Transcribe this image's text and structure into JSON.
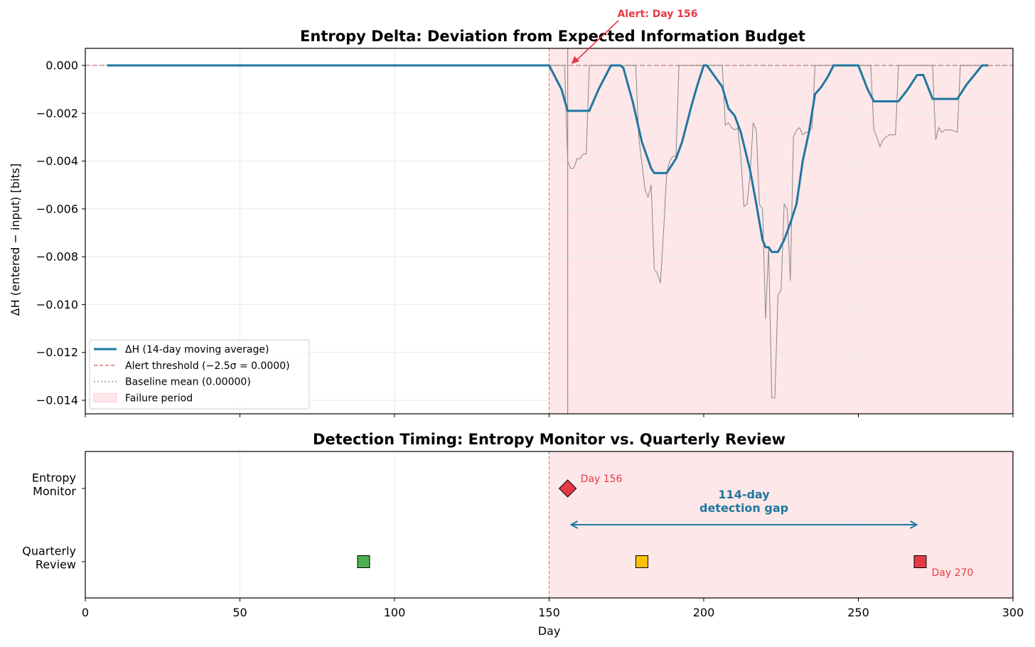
{
  "chart_data": [
    {
      "type": "line",
      "title": "Entropy Delta: Deviation from Expected Information Budget",
      "xlabel": "",
      "ylabel": "ΔH (entered − input) [bits]",
      "xlim": [
        0,
        300
      ],
      "ylim": [
        -0.0146,
        0.0007
      ],
      "x_ticks": [
        0,
        50,
        100,
        150,
        200,
        250,
        300
      ],
      "y_ticks": [
        0.0,
        -0.002,
        -0.004,
        -0.006,
        -0.008,
        -0.01,
        -0.012,
        -0.014
      ],
      "y_tick_labels": [
        "0.000",
        "−0.002",
        "−0.004",
        "−0.006",
        "−0.008",
        "−0.010",
        "−0.012",
        "−0.014"
      ],
      "grid": true,
      "legend_position": "lower-left",
      "failure_period": [
        150,
        300
      ],
      "alert_day": 156,
      "annotation": "Alert: Day 156",
      "series": [
        {
          "name": "ΔH (14-day moving average)",
          "color": "#1f77a0",
          "style": "solid",
          "points": [
            [
              7,
              0
            ],
            [
              150,
              0
            ],
            [
              154,
              -0.001
            ],
            [
              156,
              -0.0019
            ],
            [
              163,
              -0.0019
            ],
            [
              166,
              -0.001
            ],
            [
              170,
              0
            ],
            [
              173,
              0
            ],
            [
              174,
              -0.0001
            ],
            [
              177,
              -0.0015
            ],
            [
              180,
              -0.0032
            ],
            [
              183,
              -0.0043
            ],
            [
              184,
              -0.0045
            ],
            [
              188,
              -0.0045
            ],
            [
              191,
              -0.0039
            ],
            [
              193,
              -0.0032
            ],
            [
              196,
              -0.0017
            ],
            [
              198,
              -0.0008
            ],
            [
              200,
              0
            ],
            [
              201,
              0
            ],
            [
              206,
              -0.0009
            ],
            [
              208,
              -0.0018
            ],
            [
              210,
              -0.0021
            ],
            [
              212,
              -0.0028
            ],
            [
              215,
              -0.0044
            ],
            [
              217,
              -0.0058
            ],
            [
              219,
              -0.0073
            ],
            [
              220,
              -0.0076
            ],
            [
              221,
              -0.0076
            ],
            [
              222,
              -0.0078
            ],
            [
              224,
              -0.0078
            ],
            [
              226,
              -0.0073
            ],
            [
              228,
              -0.0066
            ],
            [
              230,
              -0.0058
            ],
            [
              232,
              -0.004
            ],
            [
              234,
              -0.0028
            ],
            [
              236,
              -0.0012
            ],
            [
              238,
              -0.0009
            ],
            [
              240,
              -0.0005
            ],
            [
              242,
              0
            ],
            [
              250,
              0
            ],
            [
              253,
              -0.001
            ],
            [
              255,
              -0.0015
            ],
            [
              263,
              -0.0015
            ],
            [
              266,
              -0.001
            ],
            [
              269,
              -0.0004
            ],
            [
              271,
              -0.0004
            ],
            [
              274,
              -0.0014
            ],
            [
              282,
              -0.0014
            ],
            [
              285,
              -0.0008
            ],
            [
              290,
              0
            ],
            [
              292,
              0
            ]
          ]
        },
        {
          "name": "raw ΔH",
          "color": "#888888",
          "style": "thin",
          "points": [
            [
              7,
              0
            ],
            [
              155,
              0
            ],
            [
              156,
              -0.004
            ],
            [
              157,
              -0.0043
            ],
            [
              158,
              -0.0043
            ],
            [
              159,
              -0.0039
            ],
            [
              160,
              -0.0039
            ],
            [
              161,
              -0.0037
            ],
            [
              162,
              -0.0037
            ],
            [
              163,
              0
            ],
            [
              178,
              0
            ],
            [
              179,
              -0.003
            ],
            [
              181,
              -0.0052
            ],
            [
              182,
              -0.0055
            ],
            [
              183,
              -0.005
            ],
            [
              184,
              -0.0085
            ],
            [
              185,
              -0.0087
            ],
            [
              186,
              -0.0091
            ],
            [
              187,
              -0.007
            ],
            [
              188,
              -0.0045
            ],
            [
              189,
              -0.004
            ],
            [
              190,
              -0.0038
            ],
            [
              191,
              -0.0038
            ],
            [
              192,
              0
            ],
            [
              206,
              0
            ],
            [
              207,
              -0.0025
            ],
            [
              208,
              -0.0024
            ],
            [
              209,
              -0.0026
            ],
            [
              210,
              -0.0027
            ],
            [
              211,
              -0.0026
            ],
            [
              212,
              -0.0038
            ],
            [
              213,
              -0.0059
            ],
            [
              214,
              -0.0058
            ],
            [
              215,
              -0.0045
            ],
            [
              216,
              -0.0024
            ],
            [
              217,
              -0.0027
            ],
            [
              218,
              -0.0058
            ],
            [
              219,
              -0.006
            ],
            [
              220,
              -0.0106
            ],
            [
              221,
              -0.0076
            ],
            [
              222,
              -0.0139
            ],
            [
              223,
              -0.0139
            ],
            [
              224,
              -0.0096
            ],
            [
              225,
              -0.0094
            ],
            [
              226,
              -0.0058
            ],
            [
              227,
              -0.006
            ],
            [
              228,
              -0.009
            ],
            [
              229,
              -0.003
            ],
            [
              230,
              -0.0027
            ],
            [
              231,
              -0.0026
            ],
            [
              232,
              -0.0029
            ],
            [
              233,
              -0.0028
            ],
            [
              234,
              -0.0028
            ],
            [
              235,
              -0.0026
            ],
            [
              236,
              0
            ],
            [
              254,
              0
            ],
            [
              255,
              -0.0027
            ],
            [
              256,
              -0.003
            ],
            [
              257,
              -0.0034
            ],
            [
              258,
              -0.0031
            ],
            [
              259,
              -0.003
            ],
            [
              260,
              -0.0029
            ],
            [
              262,
              -0.0029
            ],
            [
              263,
              0
            ],
            [
              274,
              0
            ],
            [
              275,
              -0.0031
            ],
            [
              276,
              -0.0026
            ],
            [
              277,
              -0.0028
            ],
            [
              278,
              -0.0027
            ],
            [
              280,
              -0.0027
            ],
            [
              282,
              -0.0028
            ],
            [
              283,
              0
            ],
            [
              290,
              0
            ]
          ]
        }
      ],
      "legend": [
        {
          "label": "ΔH (14-day moving average)",
          "kind": "line",
          "color": "#1f77a0"
        },
        {
          "label": "Alert threshold (−2.5σ = 0.0000)",
          "kind": "dashed",
          "color": "#e86a6a"
        },
        {
          "label": "Baseline mean (0.00000)",
          "kind": "dotted",
          "color": "#aaaaaa"
        },
        {
          "label": "Failure period",
          "kind": "patch",
          "color": "#fde7e8"
        }
      ]
    },
    {
      "type": "scatter",
      "title": "Detection Timing: Entropy Monitor vs. Quarterly Review",
      "xlabel": "Day",
      "xlim": [
        0,
        300
      ],
      "x_ticks": [
        0,
        50,
        100,
        150,
        200,
        250,
        300
      ],
      "categories": [
        "Entropy Monitor",
        "Quarterly Review"
      ],
      "category_labels": [
        [
          "Entropy",
          "Monitor"
        ],
        [
          "Quarterly",
          "Review"
        ]
      ],
      "grid": true,
      "failure_period": [
        150,
        300
      ],
      "points": [
        {
          "day": 156,
          "row": "Entropy Monitor",
          "marker": "diamond",
          "color": "#e63946",
          "label": "Day 156"
        },
        {
          "day": 90,
          "row": "Quarterly Review",
          "marker": "square",
          "color": "#4caf50",
          "label": ""
        },
        {
          "day": 180,
          "row": "Quarterly Review",
          "marker": "square",
          "color": "#ffc107",
          "label": ""
        },
        {
          "day": 270,
          "row": "Quarterly Review",
          "marker": "square",
          "color": "#e63946",
          "label": "Day 270"
        }
      ],
      "gap": {
        "from": 156,
        "to": 270,
        "label_line1": "114-day",
        "label_line2": "detection gap",
        "color": "#1f77a0"
      }
    }
  ]
}
